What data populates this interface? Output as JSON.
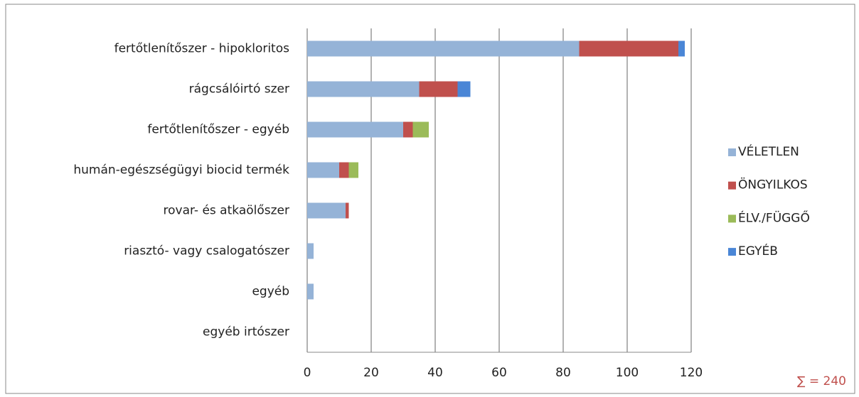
{
  "chart_data": {
    "type": "stacked-barh",
    "categories": [
      "fertőtlenítőszer - hipokloritos",
      "rágcsálóirtó szer",
      "fertőtlenítőszer - egyéb",
      "humán-egészségügyi biocid termék",
      "rovar- és atkaölőszer",
      "riasztó- vagy csalogatószer",
      "egyéb",
      "egyéb irtószer"
    ],
    "series": [
      {
        "name": "VÉLETLEN",
        "color": "#95b3d7",
        "values": [
          85,
          35,
          30,
          10,
          12,
          2,
          2,
          0
        ]
      },
      {
        "name": "ÖNGYILKOS",
        "color": "#c0504d",
        "values": [
          31,
          12,
          3,
          3,
          1,
          0,
          0,
          0
        ]
      },
      {
        "name": "ÉLV./FÜGGŐ",
        "color": "#9bbb59",
        "values": [
          0,
          0,
          5,
          3,
          0,
          0,
          0,
          0
        ]
      },
      {
        "name": "EGYÉB",
        "color": "#4a86d6",
        "values": [
          2,
          4,
          0,
          0,
          0,
          0,
          0,
          0
        ]
      }
    ],
    "xlim": [
      0,
      120
    ],
    "xticks": [
      0,
      20,
      40,
      60,
      80,
      100,
      120
    ],
    "grid": true,
    "legend": "right",
    "annotation": "∑ = 240"
  }
}
